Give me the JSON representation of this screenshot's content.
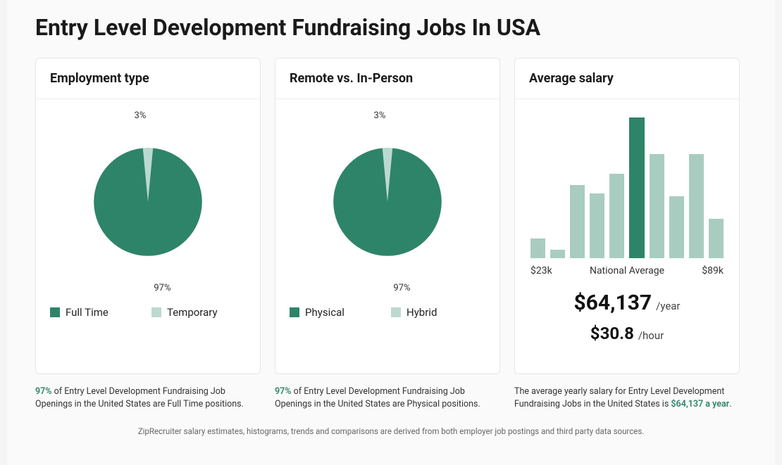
{
  "title": "Entry Level Development Fundraising Jobs In USA",
  "colors": {
    "primary": "#2e8469",
    "secondary": "#bcd9cf",
    "text_dark": "#1a1a1a"
  },
  "employment": {
    "title": "Employment type",
    "type": "pie",
    "slices": [
      {
        "label": "Full Time",
        "value": 97,
        "color": "#2e8469"
      },
      {
        "label": "Temporary",
        "value": 3,
        "color": "#bcd9cf"
      }
    ],
    "top_label": "3%",
    "bottom_label": "97%",
    "caption_highlight": "97%",
    "caption_rest": " of Entry Level Development Fundraising Job Openings in the United States are Full Time positions."
  },
  "remote": {
    "title": "Remote vs. In-Person",
    "type": "pie",
    "slices": [
      {
        "label": "Physical",
        "value": 97,
        "color": "#2e8469"
      },
      {
        "label": "Hybrid",
        "value": 3,
        "color": "#bcd9cf"
      }
    ],
    "top_label": "3%",
    "bottom_label": "97%",
    "caption_highlight": "97%",
    "caption_rest": " of Entry Level Development Fundraising Job Openings in the United States are Physical positions."
  },
  "salary": {
    "title": "Average salary",
    "type": "histogram",
    "bars": [
      {
        "height_pct": 14,
        "color": "#a9ccc1"
      },
      {
        "height_pct": 6,
        "color": "#a9ccc1"
      },
      {
        "height_pct": 52,
        "color": "#a9ccc1"
      },
      {
        "height_pct": 46,
        "color": "#a9ccc1"
      },
      {
        "height_pct": 60,
        "color": "#a9ccc1"
      },
      {
        "height_pct": 100,
        "color": "#2e8469"
      },
      {
        "height_pct": 74,
        "color": "#a9ccc1"
      },
      {
        "height_pct": 44,
        "color": "#a9ccc1"
      },
      {
        "height_pct": 74,
        "color": "#a9ccc1"
      },
      {
        "height_pct": 28,
        "color": "#a9ccc1"
      }
    ],
    "x_min_label": "$23k",
    "x_mid_label": "National Average",
    "x_max_label": "$89k",
    "yearly_value": "$64,137",
    "yearly_unit": "/year",
    "hourly_value": "$30.8",
    "hourly_unit": "/hour",
    "caption_prefix": "The average yearly salary for Entry Level Development Fundraising Jobs in the United States is ",
    "caption_highlight": "$64,137 a year",
    "caption_suffix": "."
  },
  "footnote": "ZipRecruiter salary estimates, histograms, trends and comparisons are derived from both employer job postings and third party data sources."
}
